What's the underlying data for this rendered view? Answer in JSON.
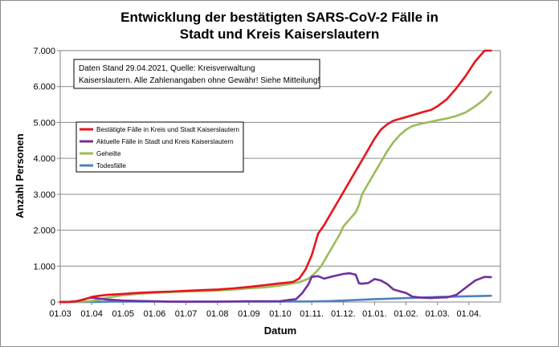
{
  "chart_data": {
    "type": "line",
    "title_line1": "Entwicklung der bestätigten SARS-CoV-2 Fälle in",
    "title_line2": "Stadt und Kreis Kaiserslautern",
    "xlabel": "Datum",
    "ylabel": "Anzahl Personen",
    "x_ticks": [
      "01.03",
      "01.04",
      "01.05",
      "01.06",
      "01.07",
      "01.08",
      "01.09",
      "01.10",
      "01.11.",
      "01.12.",
      "01.01.",
      "01.02.",
      "01.03.",
      "01.04."
    ],
    "y_ticks": [
      "0",
      "1.000",
      "2.000",
      "3.000",
      "4.000",
      "5.000",
      "6.000",
      "7.000"
    ],
    "ylim": [
      0,
      7000
    ],
    "xlim_months": [
      0,
      14
    ],
    "x_unit": "month index from 01.03 (fractional)",
    "grid": true,
    "annotation": {
      "line1": "Daten Stand 29.04.2021, Quelle: Kreisverwaltung",
      "line2": "Kaiserslautern. Alle Zahlenangaben ohne Gewähr! Siehe Mitteilung!"
    },
    "legend_position": "left-middle",
    "series": [
      {
        "name": "Bestätigte Fälle in Kreis und Stadt Kaiserslautern",
        "color": "#e8141c",
        "x": [
          0,
          0.3,
          0.5,
          0.7,
          0.9,
          1.0,
          1.2,
          1.5,
          2.0,
          2.5,
          3.0,
          3.5,
          4.0,
          4.5,
          5.0,
          5.5,
          6.0,
          6.3,
          6.5,
          6.7,
          7.0,
          7.2,
          7.4,
          7.6,
          7.8,
          8.0,
          8.1,
          8.2,
          8.4,
          8.6,
          8.8,
          9.0,
          9.2,
          9.4,
          9.5,
          9.6,
          9.8,
          10.0,
          10.2,
          10.4,
          10.6,
          10.8,
          11.0,
          11.2,
          11.5,
          11.8,
          12.0,
          12.3,
          12.6,
          12.9,
          13.2,
          13.5,
          13.7
        ],
        "values": [
          0,
          5,
          20,
          60,
          110,
          140,
          170,
          200,
          225,
          255,
          275,
          290,
          310,
          330,
          350,
          380,
          420,
          450,
          470,
          490,
          520,
          540,
          560,
          650,
          900,
          1300,
          1600,
          1900,
          2150,
          2450,
          2750,
          3050,
          3350,
          3650,
          3800,
          3950,
          4250,
          4550,
          4800,
          4950,
          5050,
          5100,
          5150,
          5200,
          5280,
          5350,
          5450,
          5650,
          5950,
          6300,
          6700,
          7100,
          7350
        ]
      },
      {
        "name": "Aktuelle Fälle in Stadt und Kreis Kaiserslautern",
        "color": "#7030a0",
        "x": [
          0,
          0.3,
          0.5,
          0.7,
          0.9,
          1.0,
          1.2,
          1.5,
          2.0,
          2.5,
          3.0,
          3.5,
          4.0,
          4.5,
          5.0,
          5.5,
          6.0,
          6.5,
          6.8,
          7.0,
          7.3,
          7.5,
          7.7,
          7.9,
          8.0,
          8.2,
          8.4,
          8.6,
          8.8,
          9.0,
          9.2,
          9.4,
          9.5,
          9.6,
          9.8,
          10.0,
          10.2,
          10.4,
          10.6,
          10.8,
          11.0,
          11.2,
          11.5,
          11.8,
          12.0,
          12.3,
          12.6,
          12.9,
          13.2,
          13.5,
          13.7
        ],
        "values": [
          0,
          5,
          20,
          60,
          110,
          120,
          100,
          70,
          40,
          30,
          20,
          10,
          10,
          10,
          10,
          15,
          20,
          20,
          20,
          25,
          60,
          80,
          250,
          500,
          700,
          720,
          650,
          700,
          740,
          780,
          800,
          760,
          520,
          510,
          530,
          640,
          600,
          500,
          350,
          300,
          250,
          150,
          120,
          110,
          120,
          130,
          200,
          400,
          600,
          700,
          690
        ]
      },
      {
        "name": "Geheilte",
        "color": "#9bbb59",
        "x": [
          0,
          0.5,
          0.9,
          1.0,
          1.2,
          1.5,
          2.0,
          2.5,
          3.0,
          3.5,
          4.0,
          4.5,
          5.0,
          5.5,
          6.0,
          6.5,
          7.0,
          7.3,
          7.6,
          7.9,
          8.1,
          8.3,
          8.5,
          8.7,
          8.9,
          9.0,
          9.2,
          9.4,
          9.5,
          9.6,
          9.8,
          10.0,
          10.2,
          10.4,
          10.6,
          10.8,
          11.0,
          11.2,
          11.5,
          11.8,
          12.0,
          12.3,
          12.6,
          12.9,
          13.2,
          13.5,
          13.7
        ],
        "values": [
          0,
          10,
          20,
          30,
          60,
          120,
          190,
          230,
          260,
          275,
          290,
          305,
          320,
          345,
          380,
          410,
          460,
          500,
          550,
          650,
          800,
          1000,
          1300,
          1600,
          1900,
          2100,
          2300,
          2500,
          2700,
          3000,
          3300,
          3600,
          3900,
          4200,
          4450,
          4650,
          4800,
          4900,
          4970,
          5020,
          5060,
          5110,
          5180,
          5280,
          5450,
          5650,
          5850
        ]
      },
      {
        "name": "Todesfälle",
        "color": "#4f81bd",
        "x": [
          0,
          1.0,
          1.5,
          2.0,
          3.0,
          4.0,
          5.0,
          6.0,
          7.0,
          8.0,
          8.5,
          9.0,
          9.5,
          10.0,
          10.5,
          11.0,
          11.5,
          12.0,
          12.5,
          13.0,
          13.5,
          13.7
        ],
        "values": [
          0,
          2,
          8,
          12,
          12,
          12,
          12,
          12,
          12,
          15,
          25,
          40,
          60,
          80,
          95,
          110,
          125,
          140,
          150,
          160,
          170,
          175
        ]
      }
    ]
  }
}
